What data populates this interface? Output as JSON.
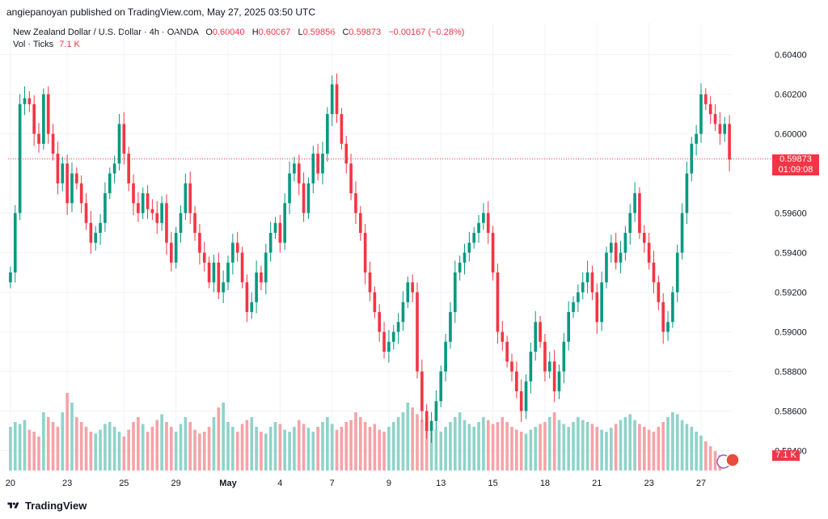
{
  "publisher_line": "angiepanoyan published on TradingView.com, May 27, 2025 03:50 UTC",
  "legend": {
    "symbol": "New Zealand Dollar / U.S. Dollar · 4h · OANDA",
    "o_key": "O",
    "o": "0.60040",
    "h_key": "H",
    "h": "0.60067",
    "l_key": "L",
    "l": "0.59856",
    "c_key": "C",
    "c": "0.59873",
    "change": "−0.00167 (−0.28%)",
    "vol_label": "Vol · Ticks",
    "vol_value": "7.1 K"
  },
  "last_price": {
    "price": "0.59873",
    "countdown": "01:09:08",
    "value": 0.59873
  },
  "volume_badge": "7.1 K",
  "footer_brand": "TradingView",
  "colors": {
    "up": "#089981",
    "down": "#f23645",
    "vol_up": "#8fd3c9",
    "vol_down": "#f5a3a8"
  },
  "chart_data": {
    "type": "candlestick",
    "title": "New Zealand Dollar / U.S. Dollar · 4h · OANDA",
    "ylim": [
      0.583,
      0.6048
    ],
    "y_ticks": [
      "0.60400",
      "0.60200",
      "0.60000",
      "0.59600",
      "0.59400",
      "0.59200",
      "0.59000",
      "0.58800",
      "0.58600",
      "0.58400"
    ],
    "x_tick_labels": [
      {
        "label": "20",
        "i": 0
      },
      {
        "label": "23",
        "i": 12
      },
      {
        "label": "25",
        "i": 24
      },
      {
        "label": "29",
        "i": 35
      },
      {
        "label": "May",
        "i": 46
      },
      {
        "label": "4",
        "i": 57
      },
      {
        "label": "7",
        "i": 68
      },
      {
        "label": "9",
        "i": 80
      },
      {
        "label": "13",
        "i": 91
      },
      {
        "label": "15",
        "i": 102
      },
      {
        "label": "18",
        "i": 113
      },
      {
        "label": "21",
        "i": 124
      },
      {
        "label": "23",
        "i": 135
      },
      {
        "label": "27",
        "i": 146
      }
    ],
    "close_series": [
      0.593,
      0.596,
      0.6015,
      0.6018,
      0.6015,
      0.6,
      0.5995,
      0.602,
      0.6,
      0.599,
      0.5975,
      0.5985,
      0.5965,
      0.598,
      0.5975,
      0.5965,
      0.5955,
      0.5945,
      0.595,
      0.5955,
      0.597,
      0.598,
      0.5985,
      0.6005,
      0.599,
      0.5975,
      0.5965,
      0.596,
      0.597,
      0.5962,
      0.596,
      0.5955,
      0.5965,
      0.5945,
      0.5935,
      0.595,
      0.596,
      0.5975,
      0.596,
      0.595,
      0.594,
      0.5935,
      0.5925,
      0.5935,
      0.592,
      0.5925,
      0.5935,
      0.5945,
      0.594,
      0.5925,
      0.591,
      0.5915,
      0.593,
      0.5925,
      0.594,
      0.595,
      0.5955,
      0.5945,
      0.5965,
      0.598,
      0.5985,
      0.5975,
      0.596,
      0.5975,
      0.599,
      0.598,
      0.599,
      0.601,
      0.6025,
      0.601,
      0.5995,
      0.5985,
      0.597,
      0.596,
      0.595,
      0.593,
      0.592,
      0.591,
      0.59,
      0.589,
      0.5895,
      0.59,
      0.5905,
      0.5915,
      0.5925,
      0.592,
      0.588,
      0.586,
      0.585,
      0.5855,
      0.5865,
      0.588,
      0.5895,
      0.591,
      0.593,
      0.5935,
      0.594,
      0.5945,
      0.595,
      0.5955,
      0.596,
      0.595,
      0.593,
      0.59,
      0.5895,
      0.5885,
      0.588,
      0.587,
      0.586,
      0.5875,
      0.589,
      0.5905,
      0.5895,
      0.588,
      0.5885,
      0.587,
      0.588,
      0.5895,
      0.591,
      0.5915,
      0.592,
      0.5925,
      0.593,
      0.592,
      0.5905,
      0.5925,
      0.594,
      0.5945,
      0.5935,
      0.594,
      0.595,
      0.596,
      0.597,
      0.595,
      0.5945,
      0.5935,
      0.5925,
      0.5915,
      0.59,
      0.5905,
      0.592,
      0.594,
      0.596,
      0.598,
      0.5995,
      0.6,
      0.602,
      0.6015,
      0.601,
      0.6005,
      0.6,
      0.6005,
      0.5987
    ],
    "volume_series": [
      0.45,
      0.5,
      0.48,
      0.52,
      0.42,
      0.4,
      0.35,
      0.6,
      0.55,
      0.5,
      0.45,
      0.6,
      0.8,
      0.7,
      0.55,
      0.5,
      0.45,
      0.4,
      0.38,
      0.42,
      0.48,
      0.5,
      0.45,
      0.4,
      0.35,
      0.42,
      0.5,
      0.55,
      0.48,
      0.4,
      0.45,
      0.52,
      0.58,
      0.5,
      0.45,
      0.4,
      0.48,
      0.55,
      0.5,
      0.42,
      0.38,
      0.4,
      0.45,
      0.55,
      0.65,
      0.7,
      0.5,
      0.45,
      0.4,
      0.48,
      0.52,
      0.55,
      0.45,
      0.4,
      0.38,
      0.45,
      0.5,
      0.48,
      0.42,
      0.4,
      0.45,
      0.52,
      0.48,
      0.44,
      0.4,
      0.45,
      0.5,
      0.55,
      0.48,
      0.42,
      0.45,
      0.5,
      0.52,
      0.6,
      0.55,
      0.5,
      0.45,
      0.48,
      0.42,
      0.4,
      0.45,
      0.5,
      0.55,
      0.6,
      0.7,
      0.65,
      0.58,
      0.52,
      0.48,
      0.45,
      0.42,
      0.4,
      0.45,
      0.5,
      0.55,
      0.6,
      0.52,
      0.48,
      0.45,
      0.5,
      0.55,
      0.52,
      0.48,
      0.5,
      0.55,
      0.5,
      0.45,
      0.42,
      0.4,
      0.38,
      0.42,
      0.45,
      0.48,
      0.5,
      0.55,
      0.6,
      0.52,
      0.48,
      0.45,
      0.5,
      0.55,
      0.52,
      0.5,
      0.48,
      0.45,
      0.42,
      0.4,
      0.44,
      0.48,
      0.52,
      0.55,
      0.58,
      0.52,
      0.48,
      0.45,
      0.42,
      0.4,
      0.45,
      0.5,
      0.55,
      0.6,
      0.58,
      0.52,
      0.48,
      0.45,
      0.4,
      0.36,
      0.3,
      0.25,
      0.2,
      0.16
    ]
  }
}
